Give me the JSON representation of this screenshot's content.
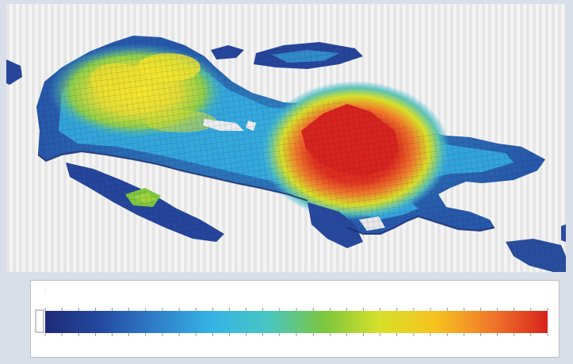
{
  "viewer": {
    "surface_colormap": "jet",
    "background": "#e9e9e9"
  },
  "legend": {
    "colormap": "jet",
    "colors": [
      "#1f2a78",
      "#244aa0",
      "#2f7fc8",
      "#36b4e4",
      "#49c6c2",
      "#7cc63e",
      "#d8e02a",
      "#f6c21f",
      "#f0782a",
      "#d8231c"
    ],
    "tick_count": 30,
    "max_label": "",
    "min_label": "",
    "title": ""
  },
  "icons": {
    "legend_swatch": "white-swatch-icon"
  }
}
